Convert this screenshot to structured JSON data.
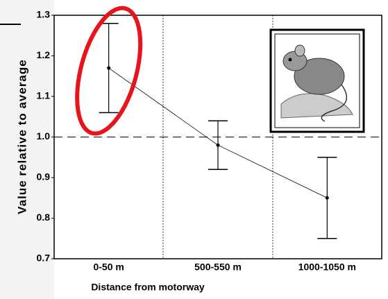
{
  "chart_data": {
    "type": "errorbar",
    "x_label": "Distance from motorway",
    "y_label": "Value relative to average",
    "categories": [
      "0-50 m",
      "500-550 m",
      "1000-1050 m"
    ],
    "series": [
      {
        "color": "#000000",
        "values": [
          1.17,
          0.98,
          0.85
        ],
        "upper": [
          1.28,
          1.04,
          0.95
        ],
        "lower": [
          1.06,
          0.92,
          0.75
        ]
      }
    ],
    "ylim": [
      0.7,
      1.3
    ],
    "yticks": [
      0.7,
      0.8,
      0.9,
      {
        "value": 1,
        "label": "1.0"
      },
      1.1,
      1.2,
      1.3
    ],
    "reference_line": 1,
    "highlight_color": "#e8141b"
  }
}
